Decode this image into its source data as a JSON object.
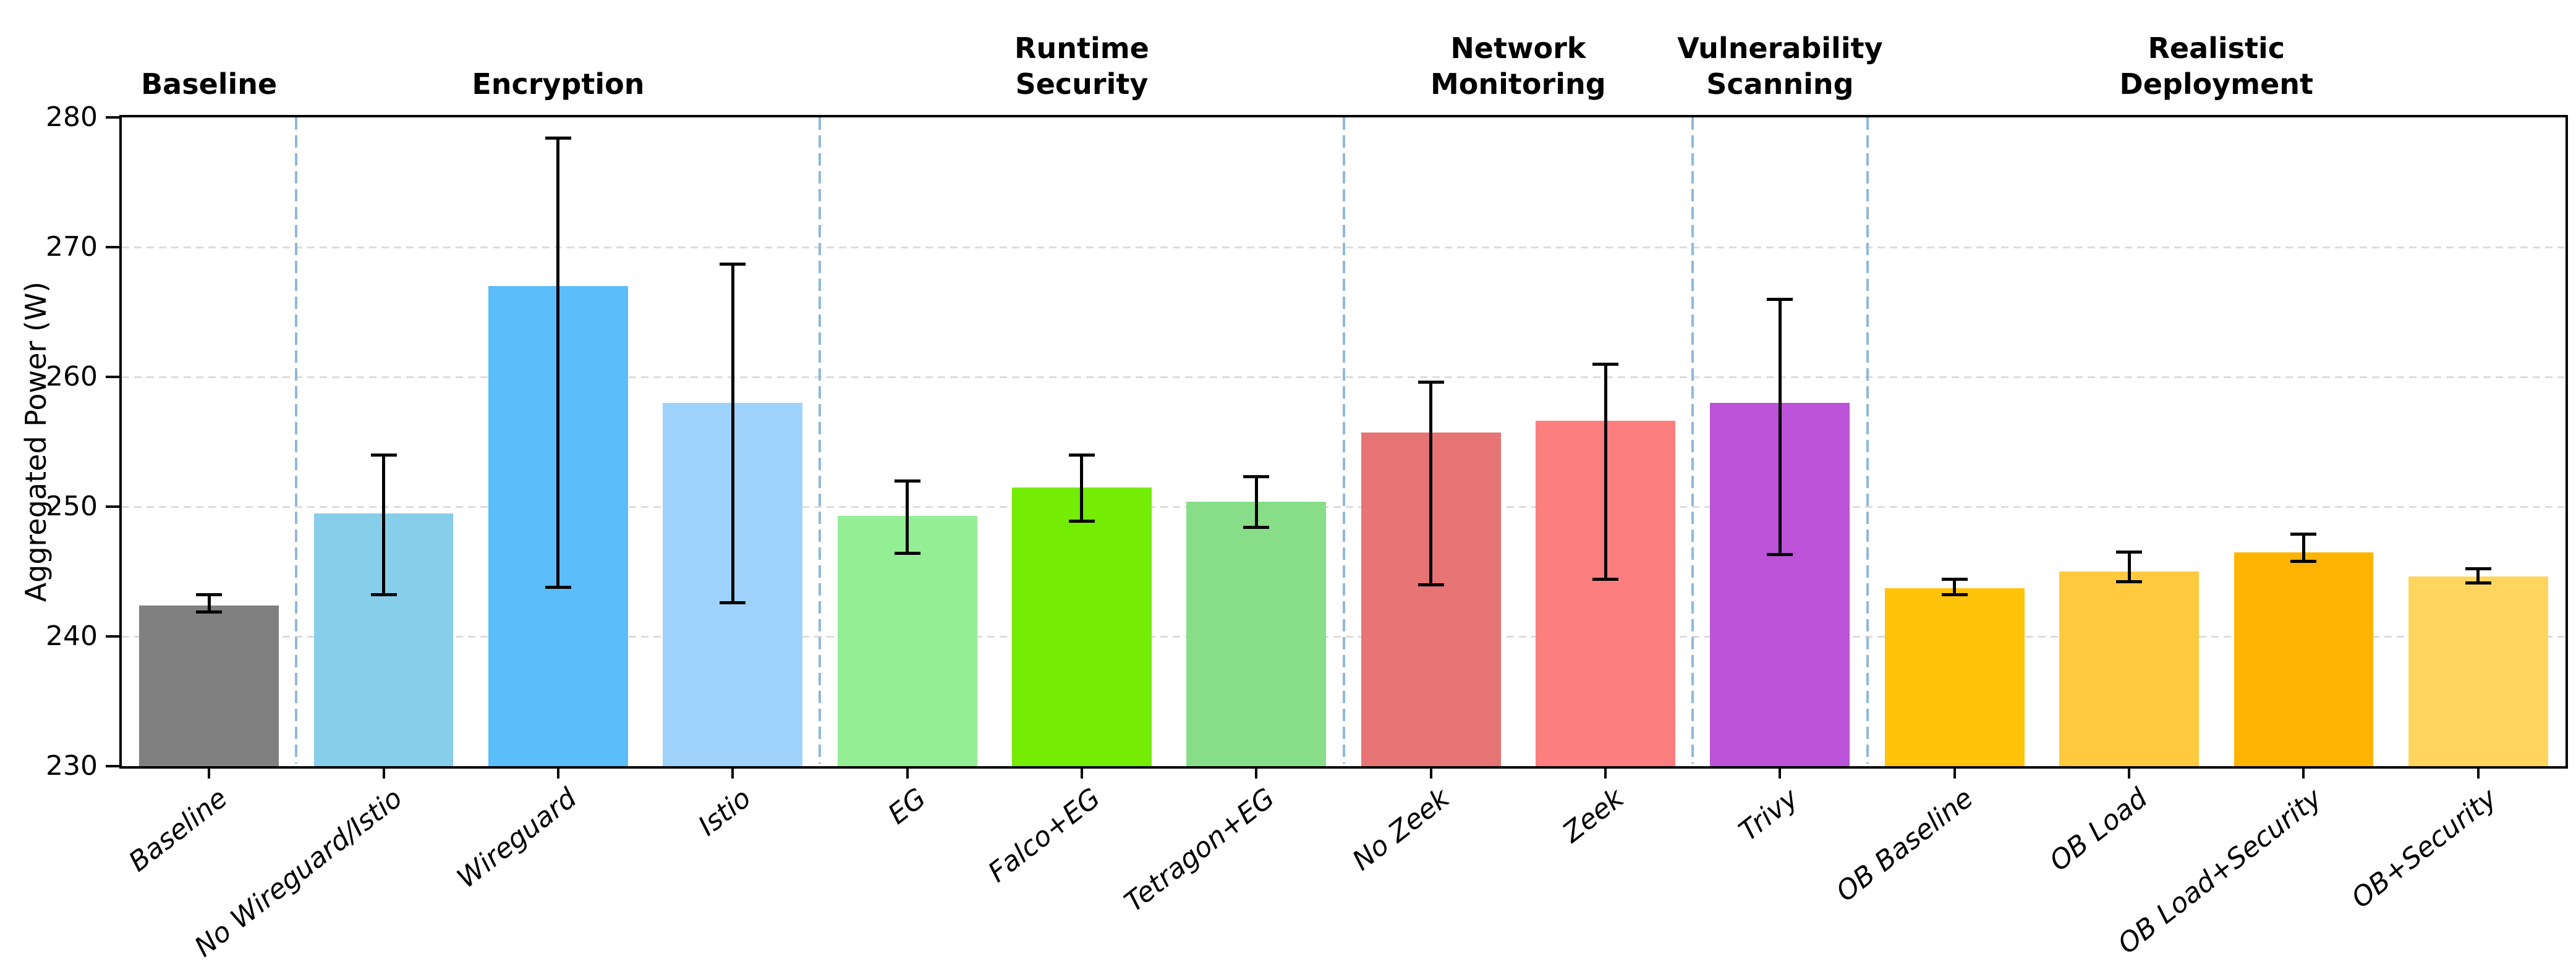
{
  "chart_data": {
    "type": "bar",
    "title": "",
    "ylabel": "Aggregated Power (W)",
    "ylim": [
      230,
      280
    ],
    "yticks": [
      230,
      240,
      250,
      260,
      270,
      280
    ],
    "grid": "horizontal-dashed",
    "legend": "none",
    "categories": [
      "Baseline",
      "No Wireguard/Istio",
      "Wireguard",
      "Istio",
      "EG",
      "Falco+EG",
      "Tetragon+EG",
      "No Zeek",
      "Zeek",
      "Trivy",
      "OB Baseline",
      "OB Load",
      "OB Load+Security",
      "OB+Security"
    ],
    "values": [
      242.4,
      249.5,
      267.0,
      258.0,
      249.3,
      251.5,
      250.4,
      255.7,
      256.6,
      258.0,
      243.7,
      245.0,
      246.5,
      244.6
    ],
    "error_low": [
      241.9,
      243.2,
      243.8,
      242.6,
      246.4,
      248.9,
      248.4,
      244.0,
      244.4,
      246.3,
      243.2,
      244.2,
      245.8,
      244.1
    ],
    "error_high": [
      243.2,
      254.0,
      278.4,
      268.7,
      252.0,
      254.0,
      252.3,
      259.6,
      261.0,
      266.0,
      244.4,
      246.5,
      247.9,
      245.2
    ],
    "bar_colors": [
      "#808080",
      "#87CEEB",
      "#5BBDFA",
      "#9FD2FB",
      "#94EE94",
      "#74EC04",
      "#88DE88",
      "#E67474",
      "#FC7E7E",
      "#BC53D8",
      "#FFC30A",
      "#FFCA3E",
      "#FFB301",
      "#FFD55E"
    ],
    "groups": [
      {
        "lines": [
          "Baseline"
        ],
        "center_index": 0
      },
      {
        "lines": [
          "Encryption"
        ],
        "center_index": 2
      },
      {
        "lines": [
          "Runtime",
          "Security"
        ],
        "center_index": 5
      },
      {
        "lines": [
          "Network",
          "Monitoring"
        ],
        "center_index": 7.5
      },
      {
        "lines": [
          "Vulnerability",
          "Scanning"
        ],
        "center_index": 9
      },
      {
        "lines": [
          "Realistic",
          "Deployment"
        ],
        "center_index": 11.5
      }
    ],
    "separators_after_index": [
      0,
      3,
      6,
      8,
      9
    ],
    "separator_color": "#8FB8D8",
    "gridline_color": "#DCDCDC",
    "errorbar_color": "#000000",
    "background_color": "#FFFFFF"
  }
}
